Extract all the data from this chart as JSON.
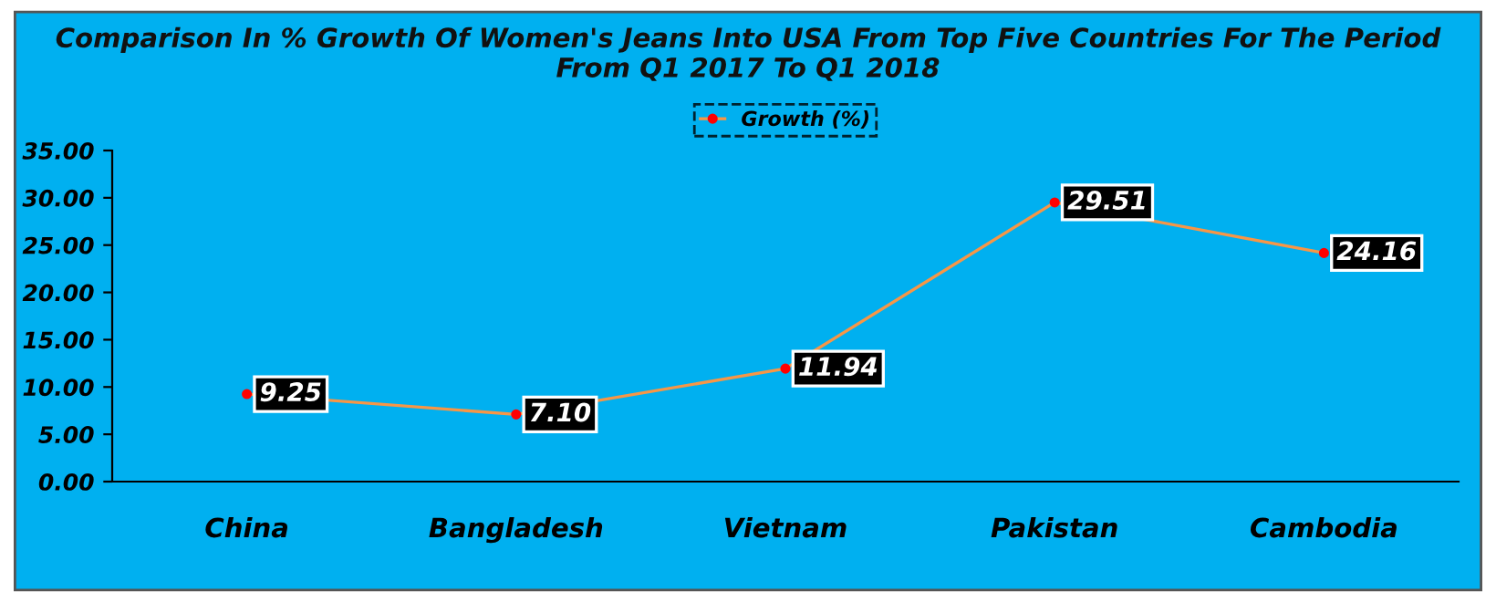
{
  "chart_data": {
    "type": "line",
    "title": "Comparison In % Growth Of Women's Jeans Into USA From Top Five Countries For The Period\nFrom Q1 2017 To Q1 2018",
    "categories": [
      "China",
      "Bangladesh",
      "Vietnam",
      "Pakistan",
      "Cambodia"
    ],
    "series": [
      {
        "name": "Growth (%)",
        "color": "#f79646",
        "values": [
          9.25,
          7.1,
          11.94,
          29.51,
          24.16
        ],
        "value_labels": [
          "9.25",
          "7.10",
          "11.94",
          "29.51",
          "24.16"
        ]
      }
    ],
    "ylim": [
      0,
      35
    ],
    "yticks": [
      {
        "value": 0,
        "label": "0.00"
      },
      {
        "value": 5,
        "label": "5.00"
      },
      {
        "value": 10,
        "label": "10.00"
      },
      {
        "value": 15,
        "label": "15.00"
      },
      {
        "value": 20,
        "label": "20.00"
      },
      {
        "value": 25,
        "label": "25.00"
      },
      {
        "value": 30,
        "label": "30.00"
      },
      {
        "value": 35,
        "label": "35.00"
      }
    ],
    "marker": "circle",
    "line_style": "solid",
    "legend": "top",
    "grid": false
  }
}
